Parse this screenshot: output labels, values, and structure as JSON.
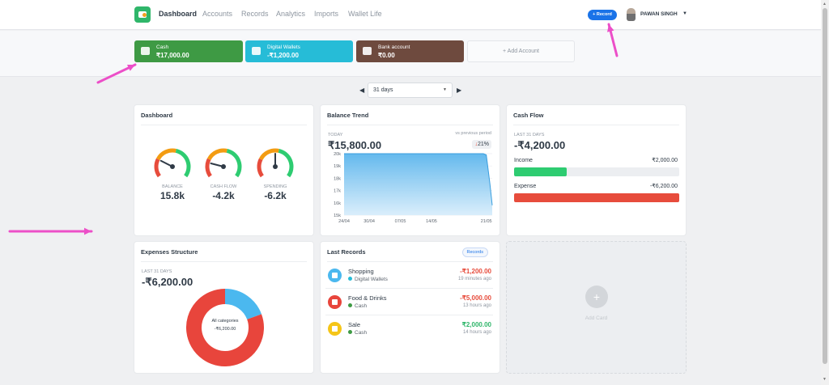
{
  "nav": {
    "logo": "wallet-logo",
    "items": [
      "Dashboard",
      "Accounts",
      "Records",
      "Analytics",
      "Imports",
      "Wallet Life"
    ],
    "record_button": "+ Record",
    "user_name": "PAWAN SINGH"
  },
  "accounts": [
    {
      "name": "Cash",
      "value": "₹17,000.00",
      "color": "#3e9a44",
      "icon": "cash-icon"
    },
    {
      "name": "Digital Wallets",
      "value": "-₹1,200.00",
      "color": "#26bcd7",
      "icon": "wallet-icon"
    },
    {
      "name": "Bank account",
      "value": "₹0.00",
      "color": "#6e4a3e",
      "icon": "wallet-icon"
    }
  ],
  "add_account_label": "+ Add Account",
  "period": {
    "selected": "31 days"
  },
  "dashboard_card": {
    "title": "Dashboard",
    "gauges": [
      {
        "label": "BALANCE",
        "value": "15.8k",
        "level": 0.25
      },
      {
        "label": "CASH FLOW",
        "value": "-4.2k",
        "level": 0.2
      },
      {
        "label": "SPENDING",
        "value": "-6.2k",
        "level": 0.5
      }
    ]
  },
  "balance_trend": {
    "title": "Balance Trend",
    "period_label": "TODAY",
    "compare_label": "vs previous period",
    "value": "₹15,800.00",
    "change": "21%",
    "change_arrow": "↓",
    "area_color": "#5bb5ec"
  },
  "chart_data": {
    "type": "area",
    "x": [
      "24/04",
      "25/04",
      "30/04",
      "07/05",
      "14/05",
      "20/05",
      "21/05",
      "22/05",
      "23/05"
    ],
    "y": [
      20000,
      20000,
      20000,
      20000,
      20000,
      20000,
      19900,
      17500,
      15800
    ],
    "xticks": [
      "24/04",
      "30/04",
      "07/05",
      "14/05",
      "21/05"
    ],
    "yticks": [
      "20k",
      "19k",
      "18k",
      "17k",
      "16k",
      "15k"
    ],
    "ylim": [
      15000,
      20000
    ]
  },
  "cash_flow": {
    "title": "Cash Flow",
    "period_label": "LAST 31 DAYS",
    "value": "-₹4,200.00",
    "income_label": "Income",
    "income_value": "₹2,000.00",
    "income_level": 0.32,
    "income_color": "#2ecc71",
    "expense_label": "Expense",
    "expense_value": "-₹6,200.00",
    "expense_level": 1.0,
    "expense_color": "#e74c3c"
  },
  "expenses_structure": {
    "title": "Expenses Structure",
    "period_label": "LAST 31 DAYS",
    "value": "-₹6,200.00",
    "center_label": "All categories",
    "center_value": "-₹6,200.00",
    "slices": [
      {
        "name": "Food & Drinks",
        "value": 5000,
        "color": "#e8453c"
      },
      {
        "name": "Shopping",
        "value": 1200,
        "color": "#4bb8ef"
      }
    ]
  },
  "last_records": {
    "title": "Last Records",
    "chip": "Records",
    "items": [
      {
        "category": "Shopping",
        "account": "Digital Wallets",
        "amount": "-₹1,200.00",
        "time": "19 minutes ago",
        "icon_color": "#4bb8ef",
        "dot_color": "#26bcd7",
        "amount_color": "#e74c3c",
        "icon": "shopping-bag-icon"
      },
      {
        "category": "Food & Drinks",
        "account": "Cash",
        "amount": "-₹5,000.00",
        "time": "13 hours ago",
        "icon_color": "#e8453c",
        "dot_color": "#3e9a44",
        "amount_color": "#e74c3c",
        "icon": "fork-knife-icon"
      },
      {
        "category": "Sale",
        "account": "Cash",
        "amount": "₹2,000.00",
        "time": "14 hours ago",
        "icon_color": "#f5c518",
        "dot_color": "#3e9a44",
        "amount_color": "#2fb66a",
        "icon": "tag-icon"
      }
    ]
  },
  "add_card_label": "Add Card",
  "annotation_color": "#ec4fc8"
}
